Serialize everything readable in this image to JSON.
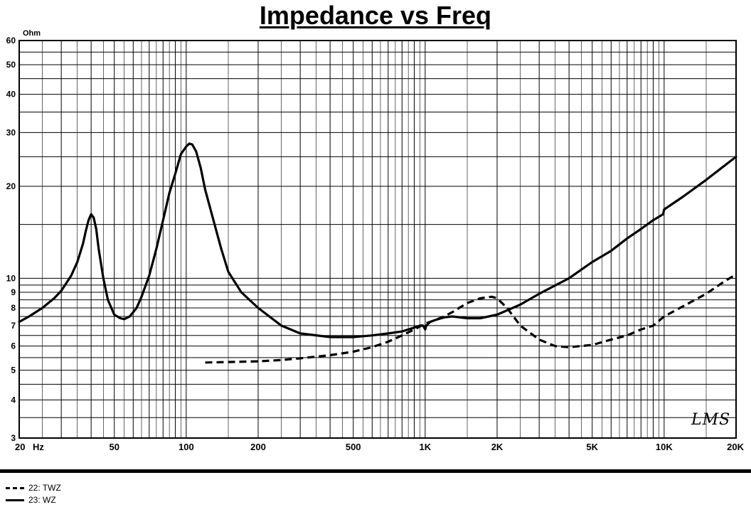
{
  "chart_data": {
    "type": "line",
    "title": "Impedance vs Freq",
    "ylabel": "Ohm",
    "xlabel": "Hz",
    "x_scale": "log",
    "y_scale": "log",
    "xlim": [
      20,
      20000
    ],
    "ylim": [
      3,
      60
    ],
    "grid": true,
    "x_ticks": [
      {
        "value": 20,
        "label": "20"
      },
      {
        "value": 50,
        "label": "50"
      },
      {
        "value": 100,
        "label": "100"
      },
      {
        "value": 200,
        "label": "200"
      },
      {
        "value": 500,
        "label": "500"
      },
      {
        "value": 1000,
        "label": "1K"
      },
      {
        "value": 2000,
        "label": "2K"
      },
      {
        "value": 5000,
        "label": "5K"
      },
      {
        "value": 10000,
        "label": "10K"
      },
      {
        "value": 20000,
        "label": "20K"
      }
    ],
    "y_ticks": [
      {
        "value": 3,
        "label": "3"
      },
      {
        "value": 4,
        "label": "4"
      },
      {
        "value": 5,
        "label": "5"
      },
      {
        "value": 6,
        "label": "6"
      },
      {
        "value": 7,
        "label": "7"
      },
      {
        "value": 8,
        "label": "8"
      },
      {
        "value": 9,
        "label": "9"
      },
      {
        "value": 10,
        "label": "10"
      },
      {
        "value": 20,
        "label": "20"
      },
      {
        "value": 30,
        "label": "30"
      },
      {
        "value": 40,
        "label": "40"
      },
      {
        "value": 50,
        "label": "50"
      },
      {
        "value": 60,
        "label": "60"
      }
    ],
    "legend_position": "bottom-left",
    "series": [
      {
        "name": "22: TWZ",
        "style": "dashed",
        "points": [
          [
            120,
            5.3
          ],
          [
            150,
            5.32
          ],
          [
            200,
            5.35
          ],
          [
            250,
            5.4
          ],
          [
            300,
            5.47
          ],
          [
            400,
            5.6
          ],
          [
            500,
            5.75
          ],
          [
            600,
            5.95
          ],
          [
            700,
            6.2
          ],
          [
            800,
            6.5
          ],
          [
            900,
            6.8
          ],
          [
            1000,
            7.1
          ],
          [
            1100,
            7.3
          ],
          [
            1200,
            7.5
          ],
          [
            1300,
            7.75
          ],
          [
            1500,
            8.3
          ],
          [
            1700,
            8.6
          ],
          [
            1900,
            8.7
          ],
          [
            2000,
            8.6
          ],
          [
            2200,
            8.0
          ],
          [
            2500,
            7.0
          ],
          [
            3000,
            6.3
          ],
          [
            3500,
            6.0
          ],
          [
            4000,
            5.95
          ],
          [
            5000,
            6.05
          ],
          [
            6000,
            6.3
          ],
          [
            7000,
            6.5
          ],
          [
            8000,
            6.8
          ],
          [
            9000,
            7.0
          ],
          [
            10000,
            7.5
          ],
          [
            12000,
            8.1
          ],
          [
            15000,
            8.9
          ],
          [
            18000,
            9.8
          ],
          [
            20000,
            10.3
          ]
        ]
      },
      {
        "name": "23: WZ",
        "style": "solid",
        "points": [
          [
            20,
            7.2
          ],
          [
            22,
            7.5
          ],
          [
            25,
            8.0
          ],
          [
            28,
            8.6
          ],
          [
            30,
            9.1
          ],
          [
            33,
            10.2
          ],
          [
            35,
            11.3
          ],
          [
            37,
            13.0
          ],
          [
            38,
            14.3
          ],
          [
            39,
            15.5
          ],
          [
            40,
            16.2
          ],
          [
            41,
            15.8
          ],
          [
            42,
            14.5
          ],
          [
            43,
            12.5
          ],
          [
            45,
            10.0
          ],
          [
            47,
            8.5
          ],
          [
            50,
            7.6
          ],
          [
            53,
            7.4
          ],
          [
            55,
            7.35
          ],
          [
            58,
            7.5
          ],
          [
            62,
            8.0
          ],
          [
            65,
            8.7
          ],
          [
            70,
            10.2
          ],
          [
            75,
            12.5
          ],
          [
            80,
            15.5
          ],
          [
            85,
            19.0
          ],
          [
            90,
            22.0
          ],
          [
            95,
            25.5
          ],
          [
            100,
            27.0
          ],
          [
            103,
            27.6
          ],
          [
            106,
            27.4
          ],
          [
            110,
            26.0
          ],
          [
            115,
            23.0
          ],
          [
            120,
            19.5
          ],
          [
            130,
            15.5
          ],
          [
            140,
            12.5
          ],
          [
            150,
            10.5
          ],
          [
            170,
            9.0
          ],
          [
            200,
            8.0
          ],
          [
            250,
            7.0
          ],
          [
            300,
            6.6
          ],
          [
            400,
            6.42
          ],
          [
            500,
            6.42
          ],
          [
            600,
            6.5
          ],
          [
            700,
            6.6
          ],
          [
            800,
            6.7
          ],
          [
            900,
            6.9
          ],
          [
            950,
            7.0
          ],
          [
            980,
            7.0
          ],
          [
            1000,
            6.8
          ],
          [
            1010,
            7.0
          ],
          [
            1050,
            7.2
          ],
          [
            1100,
            7.3
          ],
          [
            1200,
            7.45
          ],
          [
            1300,
            7.5
          ],
          [
            1500,
            7.4
          ],
          [
            1700,
            7.4
          ],
          [
            2000,
            7.6
          ],
          [
            2500,
            8.2
          ],
          [
            3000,
            8.9
          ],
          [
            4000,
            10.0
          ],
          [
            5000,
            11.3
          ],
          [
            6000,
            12.3
          ],
          [
            7000,
            13.5
          ],
          [
            8000,
            14.5
          ],
          [
            9000,
            15.5
          ],
          [
            9900,
            16.2
          ],
          [
            10000,
            16.8
          ],
          [
            12000,
            18.5
          ],
          [
            15000,
            21.0
          ],
          [
            20000,
            25.0
          ]
        ]
      }
    ]
  },
  "legend": [
    {
      "label": "22: TWZ",
      "style": "dashed"
    },
    {
      "label": "23: WZ",
      "style": "solid"
    }
  ],
  "watermark": "LMS",
  "colors": {
    "line": "#000000",
    "grid": "#000000",
    "background": "#ffffff"
  }
}
